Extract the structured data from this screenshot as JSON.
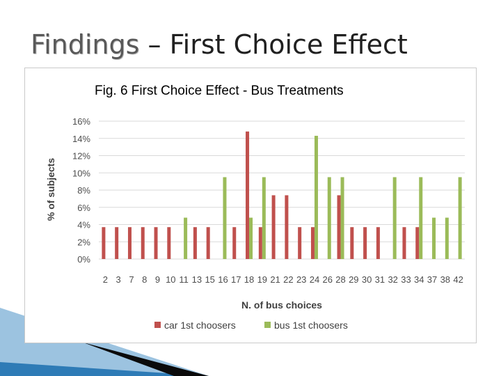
{
  "slide": {
    "title_word": "Findings",
    "title_rest": " – First Choice Effect"
  },
  "colors": {
    "car": "#c0504d",
    "bus": "#9bbb59",
    "grid": "#d9d9d9",
    "axis_text": "#4d4d4d"
  },
  "chart_data": {
    "type": "bar",
    "title": "Fig. 6 First Choice Effect - Bus Treatments",
    "xlabel": "N. of bus choices",
    "ylabel": "% of subjects",
    "ylim": [
      0,
      16
    ],
    "yticks": [
      "0%",
      "2%",
      "4%",
      "6%",
      "8%",
      "10%",
      "12%",
      "14%",
      "16%"
    ],
    "ytick_values": [
      0,
      2,
      4,
      6,
      8,
      10,
      12,
      14,
      16
    ],
    "grid": true,
    "legend_position": "bottom",
    "categories": [
      "2",
      "3",
      "7",
      "8",
      "9",
      "10",
      "11",
      "13",
      "15",
      "16",
      "17",
      "18",
      "19",
      "21",
      "22",
      "23",
      "24",
      "26",
      "28",
      "29",
      "30",
      "31",
      "32",
      "33",
      "34",
      "37",
      "38",
      "42"
    ],
    "series": [
      {
        "name": "car 1st choosers",
        "color": "#c0504d",
        "values": [
          3.7,
          3.7,
          3.7,
          3.7,
          3.7,
          3.7,
          0,
          3.7,
          3.7,
          0,
          3.7,
          14.8,
          3.7,
          7.4,
          7.4,
          3.7,
          3.7,
          0,
          7.4,
          3.7,
          3.7,
          3.7,
          0,
          3.7,
          3.7,
          0,
          0,
          0
        ]
      },
      {
        "name": "bus 1st choosers",
        "color": "#9bbb59",
        "values": [
          0,
          0,
          0,
          0,
          0,
          0,
          4.8,
          0,
          0,
          9.5,
          0,
          4.8,
          9.5,
          0,
          0,
          0,
          14.3,
          9.5,
          9.5,
          0,
          0,
          0,
          9.5,
          0,
          9.5,
          4.8,
          4.8,
          9.5
        ]
      }
    ]
  }
}
